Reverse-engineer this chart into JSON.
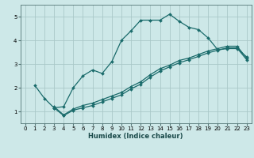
{
  "xlabel": "Humidex (Indice chaleur)",
  "bg_color": "#cde8e8",
  "grid_color": "#aac8c8",
  "line_color": "#1a6b6b",
  "xlim": [
    -0.5,
    23.5
  ],
  "ylim": [
    0.5,
    5.5
  ],
  "xticks": [
    0,
    1,
    2,
    3,
    4,
    5,
    6,
    7,
    8,
    9,
    10,
    11,
    12,
    13,
    14,
    15,
    16,
    17,
    18,
    19,
    20,
    21,
    22,
    23
  ],
  "yticks": [
    1,
    2,
    3,
    4,
    5
  ],
  "line1_x": [
    1,
    2,
    3,
    4,
    5,
    6,
    7,
    8,
    9,
    10,
    11,
    12,
    13,
    14,
    15,
    16,
    17,
    18,
    19,
    20,
    21,
    22,
    23
  ],
  "line1_y": [
    2.1,
    1.55,
    1.15,
    1.2,
    2.0,
    2.5,
    2.75,
    2.6,
    3.1,
    4.0,
    4.4,
    4.85,
    4.85,
    4.85,
    5.1,
    4.8,
    4.55,
    4.45,
    4.1,
    3.6,
    3.65,
    3.65,
    3.3
  ],
  "line2_x": [
    3,
    4,
    5,
    6,
    7,
    8,
    9,
    10,
    11,
    12,
    13,
    14,
    15,
    16,
    17,
    18,
    19,
    20,
    21,
    22,
    23
  ],
  "line2_y": [
    1.2,
    0.85,
    1.1,
    1.25,
    1.35,
    1.5,
    1.65,
    1.8,
    2.05,
    2.25,
    2.55,
    2.8,
    2.95,
    3.15,
    3.25,
    3.4,
    3.55,
    3.65,
    3.75,
    3.75,
    3.25
  ],
  "line3_x": [
    3,
    4,
    5,
    6,
    7,
    8,
    9,
    10,
    11,
    12,
    13,
    14,
    15,
    16,
    17,
    18,
    19,
    20,
    21,
    22,
    23
  ],
  "line3_y": [
    1.15,
    0.82,
    1.05,
    1.15,
    1.25,
    1.4,
    1.55,
    1.7,
    1.95,
    2.15,
    2.45,
    2.7,
    2.88,
    3.05,
    3.18,
    3.32,
    3.47,
    3.58,
    3.68,
    3.68,
    3.18
  ],
  "xlabel_fontsize": 6,
  "tick_fontsize": 5,
  "line_width": 0.9,
  "marker_size": 2.0
}
